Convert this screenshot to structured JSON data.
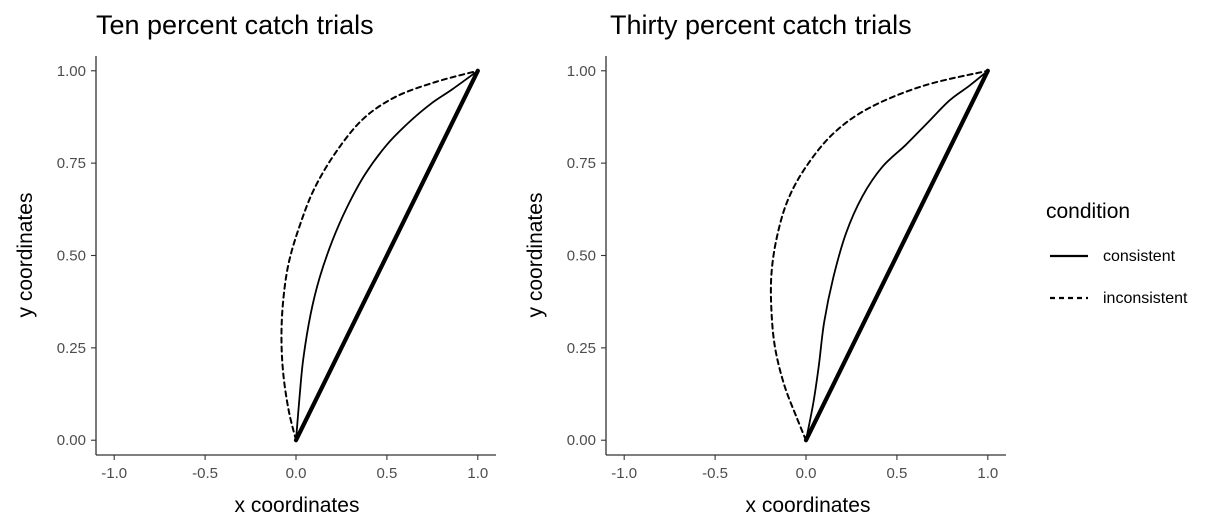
{
  "chart_data": [
    {
      "type": "line",
      "title": "Ten percent catch trials",
      "xlabel": "x coordinates",
      "ylabel": "y coordinates",
      "xlim": [
        -1.1,
        1.1
      ],
      "ylim": [
        -0.04,
        1.04
      ],
      "x_ticks": [
        "-1.0",
        "-0.5",
        "0.0",
        "0.5",
        "1.0"
      ],
      "y_ticks": [
        "0.00",
        "0.25",
        "0.50",
        "0.75",
        "1.00"
      ],
      "grid": false,
      "series": [
        {
          "name": "consistent",
          "line": "solid",
          "points": [
            [
              0.0,
              0.0
            ],
            [
              0.02,
              0.12
            ],
            [
              0.04,
              0.22
            ],
            [
              0.08,
              0.34
            ],
            [
              0.13,
              0.44
            ],
            [
              0.2,
              0.54
            ],
            [
              0.28,
              0.63
            ],
            [
              0.38,
              0.72
            ],
            [
              0.5,
              0.8
            ],
            [
              0.62,
              0.86
            ],
            [
              0.74,
              0.91
            ],
            [
              0.86,
              0.95
            ],
            [
              1.0,
              1.0
            ]
          ]
        },
        {
          "name": "inconsistent",
          "line": "dashed",
          "points": [
            [
              0.0,
              0.0
            ],
            [
              -0.04,
              0.08
            ],
            [
              -0.07,
              0.18
            ],
            [
              -0.08,
              0.28
            ],
            [
              -0.07,
              0.38
            ],
            [
              -0.04,
              0.48
            ],
            [
              0.02,
              0.58
            ],
            [
              0.1,
              0.68
            ],
            [
              0.22,
              0.78
            ],
            [
              0.37,
              0.87
            ],
            [
              0.55,
              0.93
            ],
            [
              0.77,
              0.97
            ],
            [
              1.0,
              1.0
            ]
          ]
        },
        {
          "name": "",
          "line": "solid-thick",
          "points": [
            [
              0.0,
              0.0
            ],
            [
              1.0,
              1.0
            ]
          ]
        }
      ]
    },
    {
      "type": "line",
      "title": "Thirty percent catch trials",
      "xlabel": "x coordinates",
      "ylabel": "y coordinates",
      "xlim": [
        -1.1,
        1.1
      ],
      "ylim": [
        -0.04,
        1.04
      ],
      "x_ticks": [
        "-1.0",
        "-0.5",
        "0.0",
        "0.5",
        "1.0"
      ],
      "y_ticks": [
        "0.00",
        "0.25",
        "0.50",
        "0.75",
        "1.00"
      ],
      "grid": false,
      "series": [
        {
          "name": "consistent",
          "line": "solid",
          "points": [
            [
              0.0,
              0.0
            ],
            [
              0.04,
              0.1
            ],
            [
              0.07,
              0.2
            ],
            [
              0.1,
              0.32
            ],
            [
              0.15,
              0.44
            ],
            [
              0.22,
              0.56
            ],
            [
              0.31,
              0.66
            ],
            [
              0.42,
              0.74
            ],
            [
              0.55,
              0.8
            ],
            [
              0.67,
              0.86
            ],
            [
              0.79,
              0.92
            ],
            [
              0.9,
              0.96
            ],
            [
              1.0,
              1.0
            ]
          ]
        },
        {
          "name": "inconsistent",
          "line": "dashed",
          "points": [
            [
              0.0,
              0.0
            ],
            [
              -0.05,
              0.06
            ],
            [
              -0.12,
              0.15
            ],
            [
              -0.17,
              0.25
            ],
            [
              -0.19,
              0.35
            ],
            [
              -0.19,
              0.45
            ],
            [
              -0.16,
              0.55
            ],
            [
              -0.1,
              0.65
            ],
            [
              0.0,
              0.74
            ],
            [
              0.15,
              0.83
            ],
            [
              0.35,
              0.9
            ],
            [
              0.65,
              0.96
            ],
            [
              1.0,
              1.0
            ]
          ]
        },
        {
          "name": "",
          "line": "solid-thick",
          "points": [
            [
              0.0,
              0.0
            ],
            [
              1.0,
              1.0
            ]
          ]
        }
      ]
    }
  ],
  "legend": {
    "title": "condition",
    "placement": "right",
    "items": [
      {
        "label": "consistent",
        "line": "solid"
      },
      {
        "label": "inconsistent",
        "line": "dashed"
      }
    ]
  }
}
